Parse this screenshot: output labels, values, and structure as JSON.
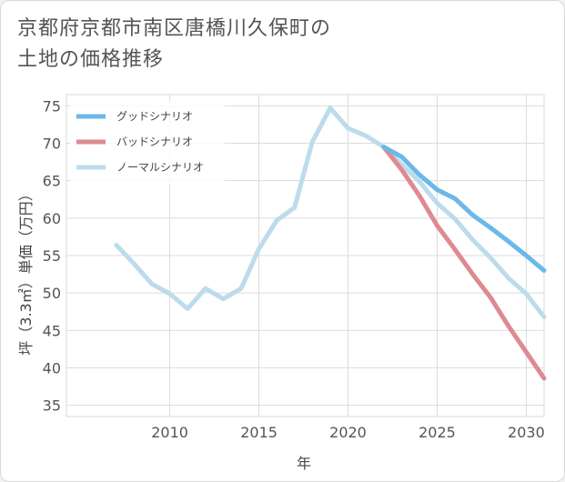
{
  "title_line1": "京都府京都市南区唐橋川久保町の",
  "title_line2": "土地の価格推移",
  "chart_data": {
    "type": "line",
    "title": "京都府京都市南区唐橋川久保町の土地の価格推移",
    "xlabel": "年",
    "ylabel": "坪（3.3㎡）単価（万円）",
    "xlim": [
      2004.2,
      2031
    ],
    "ylim": [
      33.5,
      76.5
    ],
    "xticks": [
      2010,
      2015,
      2020,
      2025,
      2030
    ],
    "yticks": [
      35,
      40,
      45,
      50,
      55,
      60,
      65,
      70,
      75
    ],
    "grid": true,
    "legend_position": "top-left",
    "series": [
      {
        "name": "グッドシナリオ",
        "color": "#6cb8e8",
        "x": [
          2022,
          2023,
          2024,
          2025,
          2026,
          2027,
          2028,
          2029,
          2030,
          2031
        ],
        "y": [
          69.5,
          68.2,
          65.8,
          63.8,
          62.6,
          60.4,
          58.7,
          56.9,
          55.0,
          53.0
        ]
      },
      {
        "name": "バッドシナリオ",
        "color": "#de8a91",
        "x": [
          2022,
          2023,
          2024,
          2025,
          2026,
          2027,
          2028,
          2029,
          2030,
          2031
        ],
        "y": [
          69.5,
          66.5,
          63.0,
          59.0,
          55.8,
          52.5,
          49.4,
          45.6,
          42.1,
          38.6
        ]
      },
      {
        "name": "ノーマルシナリオ",
        "color": "#bcdcec",
        "x": [
          2007,
          2008,
          2009,
          2010,
          2011,
          2012,
          2013,
          2014,
          2015,
          2016,
          2017,
          2018,
          2019,
          2020,
          2021,
          2022,
          2023,
          2024,
          2025,
          2026,
          2027,
          2028,
          2029,
          2030,
          2031
        ],
        "y": [
          56.4,
          53.9,
          51.2,
          49.9,
          47.9,
          50.6,
          49.2,
          50.6,
          55.9,
          59.7,
          61.4,
          70.2,
          74.7,
          72.0,
          71.0,
          69.5,
          67.2,
          64.9,
          62.0,
          59.9,
          57.1,
          54.7,
          52.0,
          49.9,
          46.8
        ]
      }
    ]
  }
}
